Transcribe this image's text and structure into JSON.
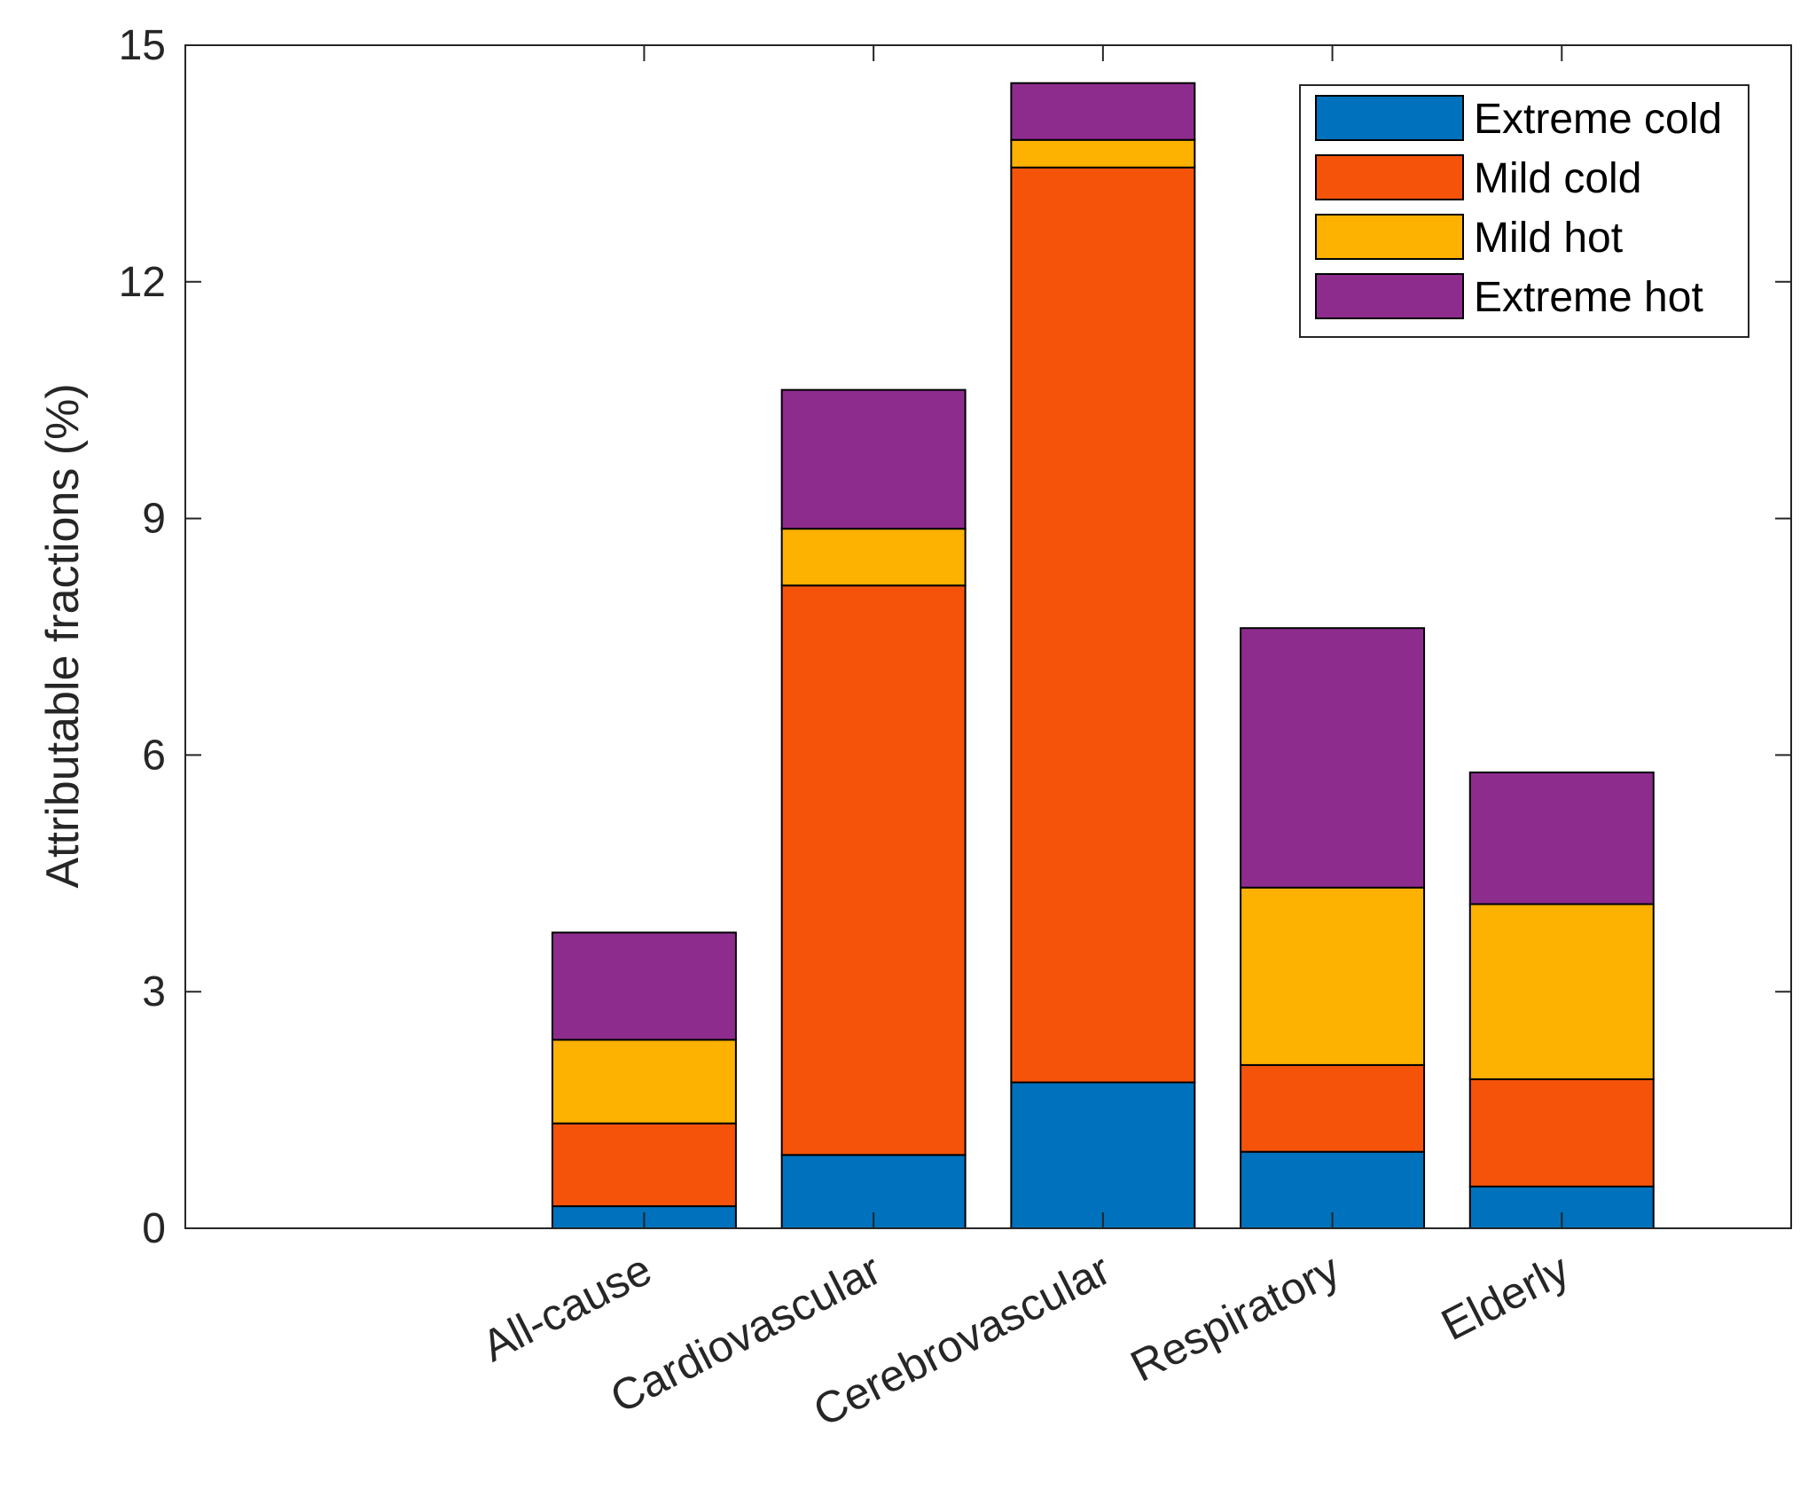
{
  "chart_data": {
    "type": "stacked-bar",
    "title": "",
    "xlabel": "",
    "ylabel": "Attributable fractions (%)",
    "ylim": [
      0,
      15
    ],
    "yticks": [
      0,
      3,
      6,
      9,
      12,
      15
    ],
    "xlim": [
      0,
      7
    ],
    "grid": false,
    "legend_position": "top-right",
    "categories": [
      "All-cause",
      "Cardiovascular",
      "Cerebrovascular",
      "Respiratory",
      "Elderly"
    ],
    "series": [
      {
        "name": "Extreme cold",
        "color": "#0072BD",
        "values": [
          0.28,
          0.93,
          1.85,
          0.97,
          0.53
        ]
      },
      {
        "name": "Mild cold",
        "color": "#F5530A",
        "values": [
          1.05,
          7.22,
          11.6,
          1.1,
          1.36
        ]
      },
      {
        "name": "Mild hot",
        "color": "#FDB100",
        "values": [
          1.06,
          0.72,
          0.35,
          2.25,
          2.22
        ]
      },
      {
        "name": "Extreme hot",
        "color": "#8E2C8E",
        "values": [
          1.36,
          1.76,
          0.72,
          3.29,
          1.67
        ]
      }
    ]
  }
}
